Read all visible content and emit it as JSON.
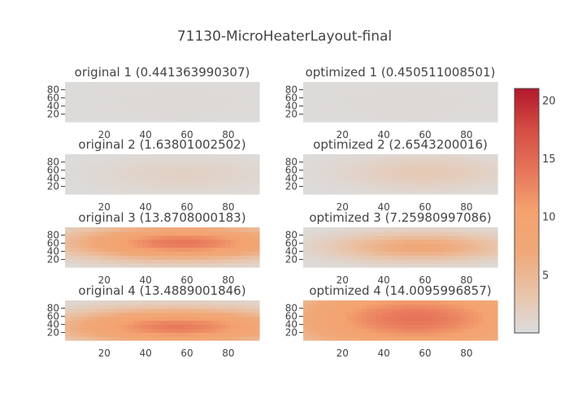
{
  "figure": {
    "title": "71130-MicroHeaterLayout-final"
  },
  "chart_data": {
    "type": "heatmap",
    "title": "71130-MicroHeaterLayout-final",
    "colorscale": [
      "#dcdcdc",
      "#e9c3a8",
      "#f0a878",
      "#f4a26f",
      "#e6745a",
      "#d44c43",
      "#b2182b"
    ],
    "zmin": 0,
    "zmax": 21,
    "colorbar_ticks": [
      5,
      10,
      15,
      20
    ],
    "x_ticks": [
      20,
      40,
      60,
      80
    ],
    "y_ticks": [
      20,
      40,
      60,
      80
    ],
    "xlim": [
      1,
      95
    ],
    "ylim": [
      1,
      99
    ],
    "layout": "4 rows x 2 columns",
    "panels": [
      {
        "title": "original 1 (0.441363990307)",
        "peak": 0.44,
        "cx": 55,
        "cy": 50,
        "sx": 40,
        "sy": 40
      },
      {
        "title": "optimized 1 (0.450511008501)",
        "peak": 0.45,
        "cx": 50,
        "cy": 50,
        "sx": 40,
        "sy": 40
      },
      {
        "title": "original 2 (1.63801002502)",
        "peak": 1.64,
        "cx": 58,
        "cy": 50,
        "sx": 30,
        "sy": 30
      },
      {
        "title": "optimized 2 (2.6543200016)",
        "peak": 2.65,
        "cx": 60,
        "cy": 55,
        "sx": 28,
        "sy": 30
      },
      {
        "title": "original 3 (13.8708000183)",
        "peak": 13.87,
        "cx": 58,
        "cy": 62,
        "sx": 38,
        "sy": 28
      },
      {
        "title": "optimized 3 (7.25980997086)",
        "peak": 7.26,
        "cx": 58,
        "cy": 52,
        "sx": 30,
        "sy": 24
      },
      {
        "title": "original 4 (13.4889001846)",
        "peak": 13.49,
        "cx": 55,
        "cy": 35,
        "sx": 40,
        "sy": 30
      },
      {
        "title": "optimized 4 (14.0095996857)",
        "peak": 14.01,
        "cx": 55,
        "cy": 55,
        "sx": 45,
        "sy": 60
      }
    ]
  }
}
